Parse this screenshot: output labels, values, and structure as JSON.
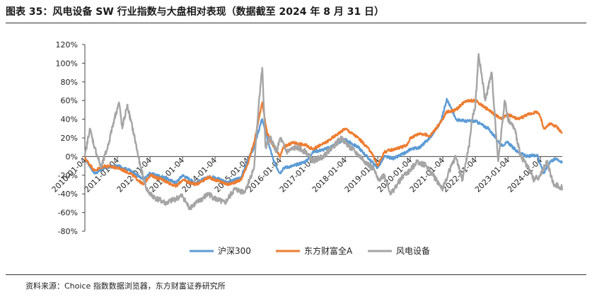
{
  "header": {
    "title": "图表 35：风电设备 SW 行业指数与大盘相对表现（数据截至 2024 年 8 月 31 日）"
  },
  "footer": {
    "source": "资料来源：Choice 指数数据浏览器，东方财富证券研究所"
  },
  "chart_data": {
    "type": "line",
    "title": "",
    "xlabel": "",
    "ylabel": "",
    "ylim": [
      -80,
      120
    ],
    "y_ticks": [
      "120%",
      "100%",
      "80%",
      "60%",
      "40%",
      "20%",
      "0%",
      "-20%",
      "-40%",
      "-60%",
      "-80%"
    ],
    "x_ticks": [
      "2010-01-04",
      "2011-01-04",
      "2012-01-04",
      "2013-01-04",
      "2014-01-04",
      "2015-01-04",
      "2016-01-04",
      "2017-01-04",
      "2018-01-04",
      "2019-01-04",
      "2020-01-04",
      "2021-01-04",
      "2022-01-04",
      "2023-01-04",
      "2024-01-04"
    ],
    "x_range": [
      2010.0,
      2024.67
    ],
    "series": [
      {
        "name": "沪深300",
        "color": "#5b9bd5",
        "x": [
          2010.0,
          2010.3,
          2010.6,
          2011.0,
          2011.4,
          2011.8,
          2012.0,
          2012.4,
          2012.8,
          2013.0,
          2013.4,
          2013.8,
          2014.0,
          2014.4,
          2014.8,
          2015.0,
          2015.2,
          2015.4,
          2015.45,
          2015.6,
          2015.8,
          2016.0,
          2016.1,
          2016.4,
          2016.8,
          2017.0,
          2017.4,
          2017.8,
          2018.0,
          2018.4,
          2018.8,
          2019.0,
          2019.2,
          2019.5,
          2019.9,
          2020.0,
          2020.3,
          2020.6,
          2020.9,
          2021.0,
          2021.12,
          2021.4,
          2021.7,
          2022.0,
          2022.4,
          2022.8,
          2023.0,
          2023.3,
          2023.6,
          2023.9,
          2024.0,
          2024.1,
          2024.3,
          2024.5,
          2024.67
        ],
        "values": [
          -2,
          -18,
          -12,
          -10,
          -15,
          -25,
          -18,
          -22,
          -28,
          -20,
          -28,
          -22,
          -22,
          -28,
          -22,
          -5,
          10,
          35,
          40,
          20,
          -5,
          -18,
          -12,
          -10,
          -5,
          5,
          8,
          15,
          18,
          10,
          -5,
          -12,
          0,
          -2,
          5,
          8,
          10,
          20,
          35,
          45,
          62,
          40,
          38,
          38,
          30,
          12,
          15,
          5,
          0,
          2,
          -8,
          -18,
          -5,
          -2,
          -7
        ]
      },
      {
        "name": "东方财富全A",
        "color": "#ed7d31",
        "x": [
          2010.0,
          2010.3,
          2010.6,
          2011.0,
          2011.4,
          2011.8,
          2012.0,
          2012.4,
          2012.8,
          2013.0,
          2013.4,
          2013.8,
          2014.0,
          2014.4,
          2014.8,
          2015.0,
          2015.2,
          2015.4,
          2015.45,
          2015.6,
          2015.8,
          2016.0,
          2016.1,
          2016.4,
          2016.8,
          2017.0,
          2017.4,
          2017.8,
          2018.0,
          2018.4,
          2018.8,
          2019.0,
          2019.2,
          2019.5,
          2019.9,
          2020.0,
          2020.3,
          2020.6,
          2020.9,
          2021.0,
          2021.12,
          2021.4,
          2021.7,
          2022.0,
          2022.4,
          2022.8,
          2023.0,
          2023.3,
          2023.6,
          2023.9,
          2024.0,
          2024.1,
          2024.3,
          2024.5,
          2024.67
        ],
        "values": [
          -2,
          -15,
          -10,
          -12,
          -18,
          -30,
          -20,
          -25,
          -32,
          -25,
          -30,
          -22,
          -25,
          -30,
          -25,
          -8,
          15,
          50,
          58,
          25,
          10,
          0,
          10,
          15,
          12,
          8,
          15,
          25,
          30,
          20,
          5,
          -10,
          5,
          8,
          12,
          20,
          25,
          22,
          35,
          40,
          48,
          50,
          60,
          60,
          50,
          40,
          45,
          40,
          45,
          48,
          42,
          30,
          35,
          32,
          25
        ]
      },
      {
        "name": "风电设备",
        "color": "#a5a5a5",
        "x": [
          2010.0,
          2010.15,
          2010.3,
          2010.5,
          2010.7,
          2010.9,
          2011.05,
          2011.15,
          2011.3,
          2011.5,
          2011.7,
          2011.9,
          2012.0,
          2012.2,
          2012.5,
          2012.8,
          2013.0,
          2013.2,
          2013.5,
          2013.8,
          2014.0,
          2014.3,
          2014.6,
          2014.9,
          2015.0,
          2015.2,
          2015.35,
          2015.45,
          2015.55,
          2015.7,
          2015.9,
          2016.0,
          2016.2,
          2016.5,
          2016.8,
          2017.0,
          2017.3,
          2017.6,
          2017.9,
          2018.0,
          2018.3,
          2018.6,
          2018.9,
          2019.0,
          2019.2,
          2019.4,
          2019.6,
          2019.8,
          2020.0,
          2020.2,
          2020.5,
          2020.8,
          2021.0,
          2021.2,
          2021.4,
          2021.6,
          2021.8,
          2021.9,
          2022.0,
          2022.1,
          2022.3,
          2022.5,
          2022.7,
          2022.9,
          2023.0,
          2023.2,
          2023.4,
          2023.6,
          2023.8,
          2024.0,
          2024.2,
          2024.4,
          2024.67
        ],
        "values": [
          0,
          30,
          10,
          -12,
          10,
          40,
          58,
          30,
          55,
          25,
          -10,
          -35,
          -40,
          -45,
          -50,
          -45,
          -42,
          -55,
          -48,
          -40,
          -45,
          -50,
          -35,
          -38,
          -30,
          -12,
          60,
          95,
          10,
          20,
          5,
          20,
          5,
          10,
          5,
          -5,
          0,
          10,
          20,
          15,
          5,
          -5,
          -15,
          -25,
          -20,
          -40,
          -30,
          -20,
          -15,
          -5,
          -10,
          -25,
          -35,
          -15,
          0,
          -25,
          10,
          40,
          55,
          110,
          60,
          90,
          -5,
          60,
          40,
          30,
          0,
          -10,
          -25,
          -20,
          -5,
          -30,
          -33
        ]
      }
    ]
  }
}
